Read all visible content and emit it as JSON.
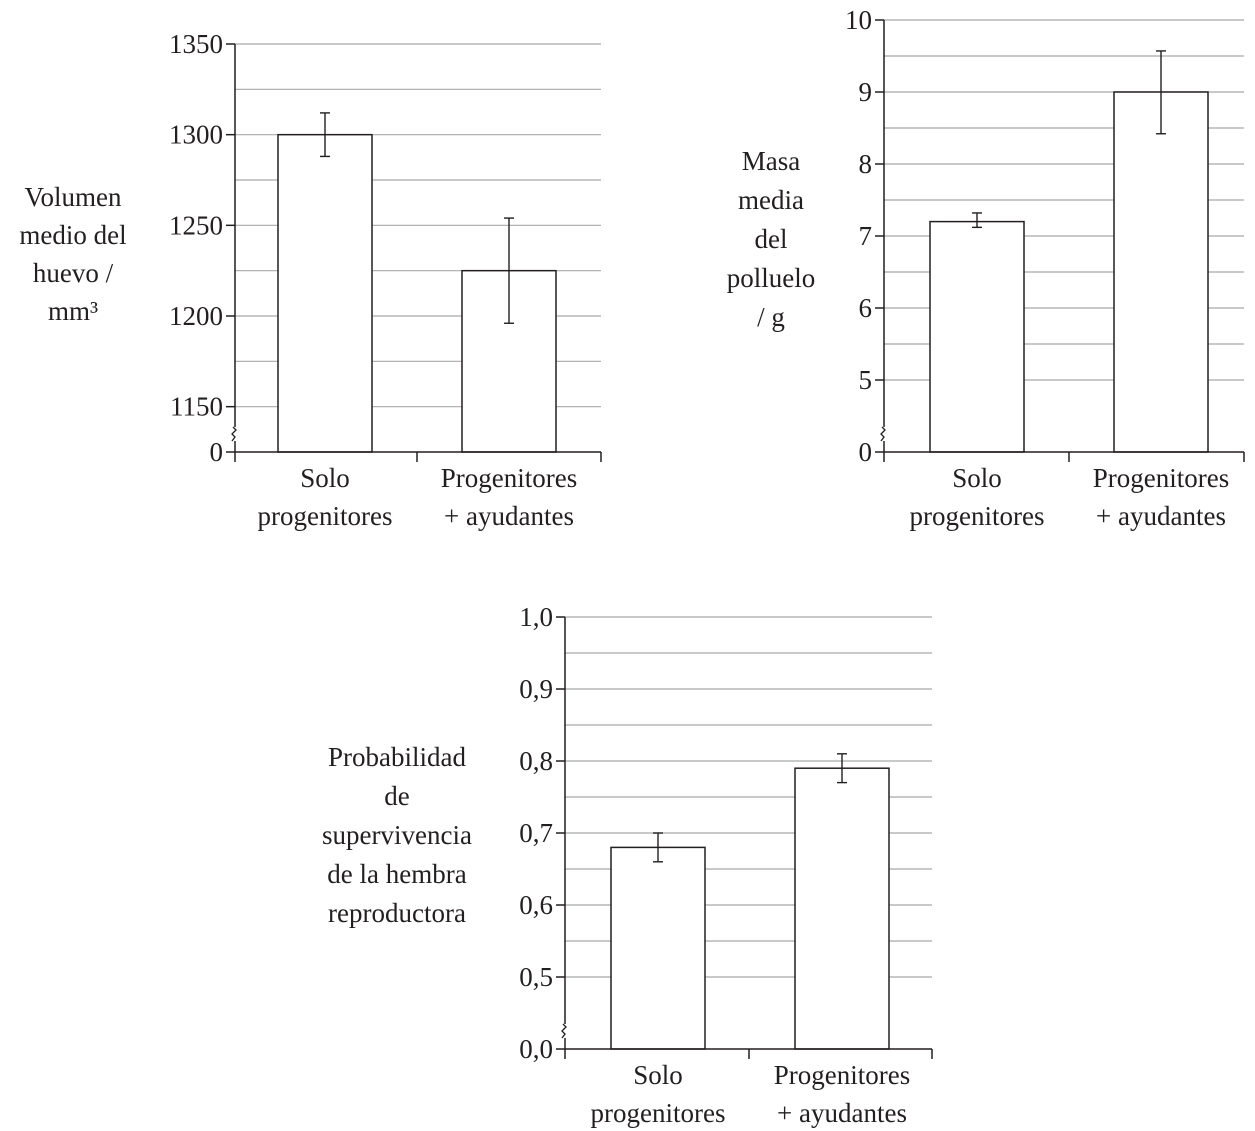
{
  "chart_data": [
    {
      "type": "bar",
      "categories": [
        [
          "Solo",
          "progenitores"
        ],
        [
          "Progenitores",
          "+ ayudantes"
        ]
      ],
      "values": [
        1300,
        1225
      ],
      "error_low": [
        1288,
        1196
      ],
      "error_high": [
        1312,
        1254
      ],
      "ylabel_lines": [
        "Volumen",
        "medio del",
        "huevo /",
        "mm³"
      ],
      "yticks": [
        0,
        1150,
        1200,
        1250,
        1300,
        1350
      ],
      "ytick_labels": [
        "0",
        "1150",
        "1200",
        "1250",
        "1300",
        "1350"
      ],
      "ylim": [
        1125,
        1350
      ],
      "axis_break": true,
      "grid": true
    },
    {
      "type": "bar",
      "categories": [
        [
          "Solo",
          "progenitores"
        ],
        [
          "Progenitores",
          "+ ayudantes"
        ]
      ],
      "values": [
        7.2,
        9.0
      ],
      "error_low": [
        7.12,
        8.42
      ],
      "error_high": [
        7.32,
        9.57
      ],
      "ylabel_lines": [
        "Masa",
        "media",
        "del",
        "polluelo",
        "/ g"
      ],
      "yticks": [
        0,
        5,
        6,
        7,
        8,
        9,
        10
      ],
      "ytick_labels": [
        "0",
        "5",
        "6",
        "7",
        "8",
        "9",
        "10"
      ],
      "ylim": [
        4,
        10
      ],
      "axis_break": true,
      "grid": true
    },
    {
      "type": "bar",
      "categories": [
        [
          "Solo",
          "progenitores"
        ],
        [
          "Progenitores",
          "+ ayudantes"
        ]
      ],
      "values": [
        0.68,
        0.79
      ],
      "error_low": [
        0.66,
        0.77
      ],
      "error_high": [
        0.7,
        0.81
      ],
      "ylabel_lines": [
        "Probabilidad",
        "de",
        "supervivencia",
        "de la hembra",
        "reproductora"
      ],
      "yticks": [
        0.0,
        0.5,
        0.6,
        0.7,
        0.8,
        0.9,
        1.0
      ],
      "ytick_labels": [
        "0,0",
        "0,5",
        "0,6",
        "0,7",
        "0,8",
        "0,9",
        "1,0"
      ],
      "ylim": [
        0.4,
        1.0
      ],
      "axis_break": true,
      "grid": true
    }
  ]
}
